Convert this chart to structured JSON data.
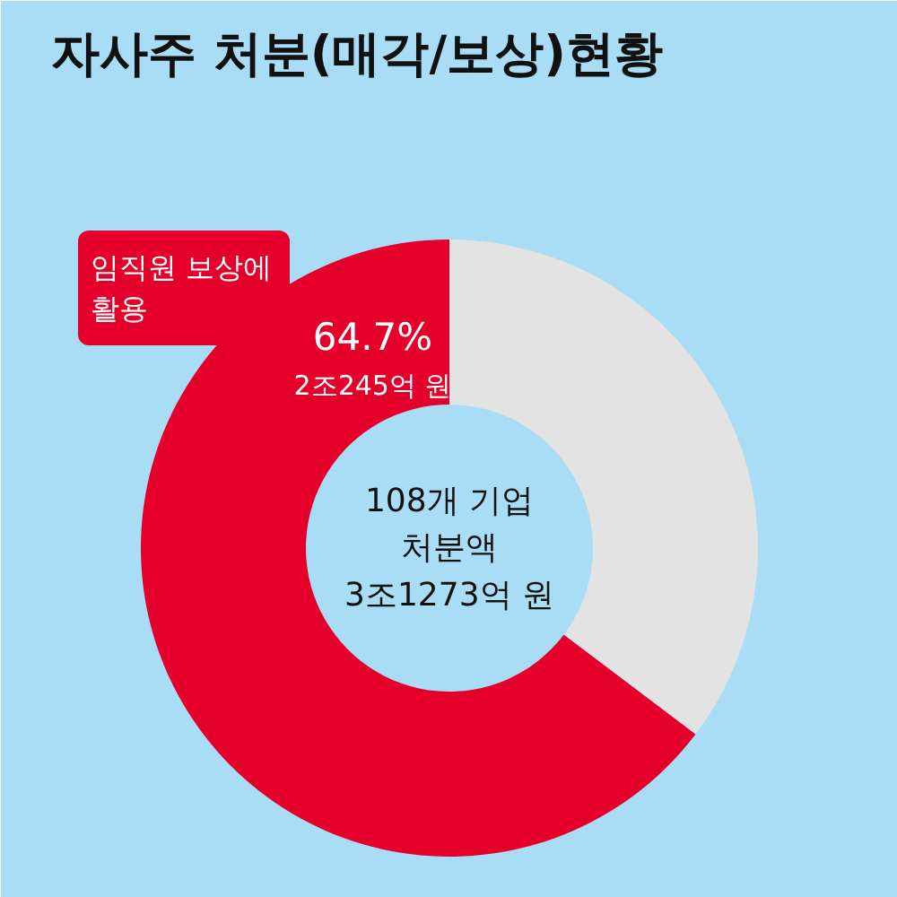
{
  "chart_data": {
    "type": "donut",
    "title": "자사주 처분(매각/보상)현황",
    "categories": [
      "임직원 보상에 활용",
      null
    ],
    "values": [
      64.7,
      35.3
    ],
    "colors": [
      "#e4002b",
      "#e3e3e3"
    ],
    "value_labels": [
      "64.7%",
      null
    ],
    "annotations": [
      "2조245억 원",
      "108개 기업\n처분액\n3조1273억 원"
    ]
  }
}
